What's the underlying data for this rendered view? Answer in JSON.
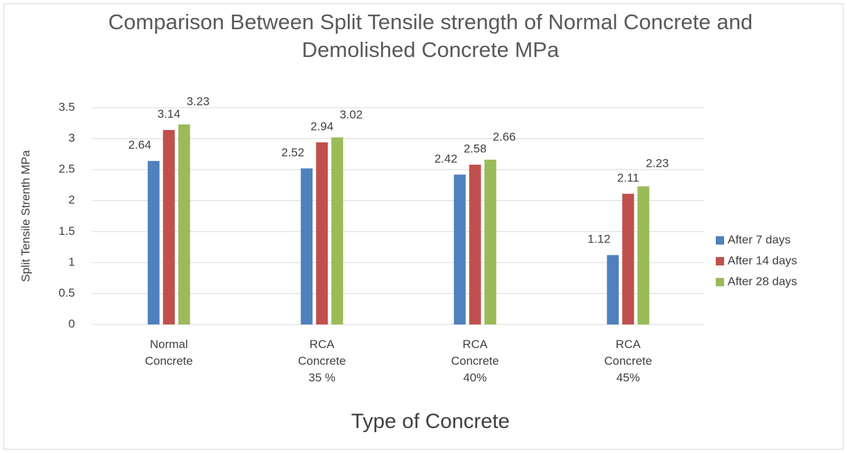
{
  "chart_data": {
    "type": "bar",
    "title": "Comparison Between Split Tensile strength of Normal Concrete and Demolished Concrete MPa",
    "x_label": "Type of Concrete",
    "y_label": "Split Tensile Strenth MPa",
    "categories": [
      "Normal Concrete",
      "RCA Concrete 35 %",
      "RCA Concrete 40%",
      "RCA Concrete 45%"
    ],
    "series": [
      {
        "name": "After 7 days",
        "color": "#4f81bd",
        "values": [
          2.64,
          2.52,
          2.42,
          1.12
        ]
      },
      {
        "name": "After 14 days",
        "color": "#c0504d",
        "values": [
          3.14,
          2.94,
          2.58,
          2.11
        ]
      },
      {
        "name": "After 28 days",
        "color": "#9bbb59",
        "values": [
          3.23,
          3.02,
          2.66,
          2.23
        ]
      }
    ],
    "ylim": [
      0,
      3.5
    ],
    "yticks": [
      0,
      0.5,
      1,
      1.5,
      2,
      2.5,
      3,
      3.5
    ],
    "grid": true,
    "legend": "right"
  }
}
